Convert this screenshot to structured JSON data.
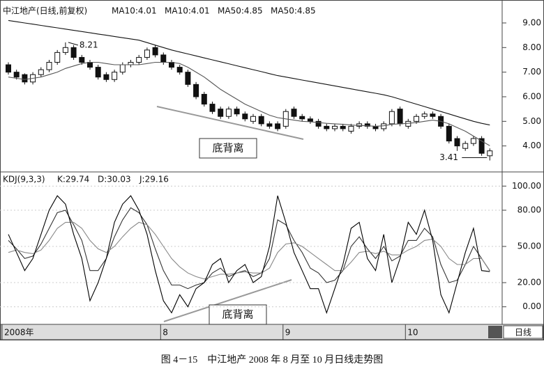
{
  "chart_data": [
    {
      "type": "candlestick",
      "title": "中江地产(日线,前复权)",
      "header_items": [
        "MA10:4.01",
        "MA50:4.85"
      ],
      "open": [
        7.3,
        7.0,
        6.9,
        6.6,
        6.9,
        7.1,
        7.4,
        7.8,
        8.0,
        7.6,
        7.4,
        7.2,
        6.9,
        6.7,
        7.0,
        7.3,
        7.4,
        7.6,
        8.0,
        7.7,
        7.4,
        7.2,
        7.0,
        6.5,
        6.1,
        5.7,
        5.5,
        5.2,
        5.5,
        5.3,
        5.0,
        5.2,
        4.9,
        4.9,
        4.8,
        5.5,
        5.2,
        5.1,
        5.0,
        4.8,
        4.7,
        4.8,
        4.6,
        4.8,
        4.9,
        4.8,
        4.7,
        4.9,
        5.5,
        4.8,
        5.0,
        5.2,
        5.3,
        5.2,
        4.8,
        4.3,
        3.9,
        4.1,
        4.3,
        3.6
      ],
      "high": [
        7.4,
        7.1,
        6.95,
        7.0,
        7.2,
        7.5,
        7.9,
        8.21,
        8.1,
        7.7,
        7.5,
        7.3,
        7.0,
        7.1,
        7.4,
        7.5,
        7.7,
        8.0,
        8.1,
        7.8,
        7.5,
        7.3,
        7.1,
        6.6,
        6.2,
        5.8,
        5.6,
        5.6,
        5.6,
        5.4,
        5.3,
        5.3,
        5.0,
        5.0,
        5.5,
        5.6,
        5.3,
        5.2,
        5.1,
        4.9,
        4.9,
        4.9,
        4.9,
        5.0,
        5.0,
        4.9,
        5.0,
        5.5,
        5.6,
        5.1,
        5.3,
        5.4,
        5.4,
        5.3,
        4.9,
        4.4,
        4.2,
        4.4,
        4.4,
        3.9
      ],
      "low": [
        6.9,
        6.7,
        6.5,
        6.5,
        6.8,
        7.0,
        7.3,
        7.7,
        7.5,
        7.3,
        7.1,
        6.7,
        6.6,
        6.6,
        6.9,
        7.2,
        7.3,
        7.5,
        7.6,
        7.3,
        7.1,
        6.9,
        6.4,
        5.9,
        5.6,
        5.3,
        5.1,
        5.1,
        5.2,
        5.0,
        4.9,
        4.8,
        4.7,
        4.6,
        4.7,
        5.1,
        5.0,
        4.9,
        4.7,
        4.6,
        4.6,
        4.6,
        4.5,
        4.7,
        4.7,
        4.6,
        4.6,
        4.8,
        4.8,
        4.7,
        4.9,
        5.1,
        5.1,
        4.7,
        4.1,
        3.8,
        3.8,
        4.0,
        3.6,
        3.41
      ],
      "close": [
        7.0,
        6.8,
        6.6,
        6.9,
        7.1,
        7.4,
        7.8,
        8.0,
        7.6,
        7.4,
        7.2,
        6.8,
        6.7,
        7.0,
        7.3,
        7.4,
        7.6,
        7.9,
        7.7,
        7.4,
        7.2,
        7.0,
        6.5,
        6.0,
        5.7,
        5.4,
        5.2,
        5.5,
        5.3,
        5.1,
        5.2,
        4.9,
        4.8,
        4.7,
        5.4,
        5.2,
        5.1,
        5.0,
        4.8,
        4.7,
        4.8,
        4.7,
        4.8,
        4.9,
        4.8,
        4.7,
        4.9,
        5.4,
        4.9,
        5.0,
        5.2,
        5.3,
        5.2,
        4.8,
        4.2,
        4.0,
        4.1,
        4.3,
        3.7,
        3.8
      ],
      "series": [
        {
          "name": "MA10:4.01",
          "color": "#555555",
          "values": [
            6.8,
            6.75,
            6.7,
            6.75,
            6.8,
            6.9,
            7.0,
            7.15,
            7.25,
            7.35,
            7.4,
            7.4,
            7.35,
            7.3,
            7.3,
            7.3,
            7.3,
            7.35,
            7.4,
            7.4,
            7.4,
            7.35,
            7.2,
            7.0,
            6.8,
            6.55,
            6.3,
            6.1,
            5.9,
            5.7,
            5.55,
            5.4,
            5.25,
            5.15,
            5.1,
            5.05,
            5.0,
            4.98,
            4.95,
            4.92,
            4.9,
            4.88,
            4.85,
            4.83,
            4.82,
            4.8,
            4.82,
            4.88,
            4.9,
            4.92,
            4.95,
            5.0,
            5.05,
            5.0,
            4.9,
            4.75,
            4.6,
            4.4,
            4.2,
            4.01
          ]
        },
        {
          "name": "MA50:4.85",
          "color": "#111111",
          "values": [
            9.1,
            9.05,
            9.0,
            8.95,
            8.9,
            8.85,
            8.8,
            8.75,
            8.7,
            8.65,
            8.6,
            8.55,
            8.5,
            8.45,
            8.4,
            8.35,
            8.3,
            8.2,
            8.1,
            8.0,
            7.9,
            7.82,
            7.74,
            7.66,
            7.58,
            7.5,
            7.42,
            7.34,
            7.26,
            7.18,
            7.1,
            7.02,
            6.94,
            6.86,
            6.8,
            6.74,
            6.68,
            6.62,
            6.56,
            6.5,
            6.44,
            6.38,
            6.32,
            6.26,
            6.2,
            6.14,
            6.08,
            6.0,
            5.9,
            5.8,
            5.7,
            5.6,
            5.5,
            5.4,
            5.3,
            5.2,
            5.1,
            5.0,
            4.92,
            4.85
          ]
        }
      ],
      "ylim": [
        3.0,
        9.65
      ],
      "yticks": [
        {
          "value": 4,
          "label": "4.00"
        },
        {
          "value": 5,
          "label": "5.00"
        },
        {
          "value": 6,
          "label": "6.00"
        },
        {
          "value": 7,
          "label": "7.00"
        },
        {
          "value": 8,
          "label": "8.00"
        },
        {
          "value": 9,
          "label": "9.00"
        }
      ],
      "annotations": {
        "high": "8.21",
        "low": "3.41",
        "divergence": "底背离"
      }
    },
    {
      "type": "line",
      "title": "KDJ(9,3,3)",
      "series": [
        {
          "name": "K:29.74",
          "color": "#333333",
          "values": [
            55,
            48,
            40,
            42,
            52,
            65,
            78,
            80,
            68,
            55,
            30,
            30,
            40,
            58,
            72,
            82,
            78,
            68,
            48,
            30,
            18,
            18,
            15,
            18,
            20,
            28,
            32,
            25,
            28,
            30,
            25,
            28,
            40,
            72,
            68,
            55,
            45,
            32,
            28,
            20,
            22,
            30,
            50,
            58,
            48,
            40,
            50,
            38,
            42,
            55,
            55,
            65,
            58,
            35,
            20,
            22,
            35,
            50,
            40,
            29.74
          ]
        },
        {
          "name": "D:30.03",
          "color": "#888888",
          "values": [
            45,
            47,
            45,
            44,
            47,
            55,
            65,
            70,
            70,
            65,
            55,
            48,
            45,
            50,
            58,
            65,
            70,
            68,
            60,
            50,
            40,
            33,
            28,
            25,
            23,
            25,
            27,
            27,
            28,
            29,
            28,
            28,
            32,
            45,
            52,
            53,
            50,
            45,
            40,
            35,
            30,
            30,
            37,
            45,
            46,
            44,
            46,
            43,
            43,
            47,
            50,
            55,
            56,
            50,
            40,
            35,
            35,
            40,
            40,
            30.03
          ]
        },
        {
          "name": "J:29.16",
          "color": "#000000",
          "values": [
            60,
            45,
            30,
            40,
            60,
            80,
            92,
            85,
            60,
            40,
            5,
            20,
            40,
            70,
            85,
            92,
            80,
            60,
            30,
            5,
            -5,
            10,
            0,
            15,
            20,
            35,
            40,
            20,
            30,
            35,
            20,
            25,
            50,
            92,
            70,
            45,
            30,
            15,
            15,
            -5,
            15,
            35,
            65,
            70,
            40,
            30,
            60,
            20,
            40,
            70,
            60,
            80,
            55,
            10,
            -5,
            20,
            45,
            65,
            30,
            29.16
          ]
        }
      ],
      "ylim": [
        -14,
        110
      ],
      "yticks": [
        {
          "value": 0,
          "label": "0.00"
        },
        {
          "value": 20,
          "label": "20.00"
        },
        {
          "value": 50,
          "label": "50.00"
        },
        {
          "value": 80,
          "label": "80.00"
        },
        {
          "value": 100,
          "label": "100.00"
        }
      ],
      "annotations": {
        "divergence": "底背离"
      }
    }
  ],
  "x_axis": {
    "categories": [
      "2008年",
      null,
      null,
      null,
      null,
      null,
      null,
      null,
      null,
      null,
      null,
      null,
      null,
      null,
      null,
      null,
      null,
      null,
      null,
      "8",
      null,
      null,
      null,
      null,
      null,
      null,
      null,
      null,
      null,
      null,
      null,
      null,
      null,
      null,
      "9",
      null,
      null,
      null,
      null,
      null,
      null,
      null,
      null,
      null,
      null,
      null,
      null,
      null,
      null,
      "10",
      null,
      null,
      null,
      null,
      null,
      null,
      null,
      null,
      null,
      null
    ],
    "period_button": "日线"
  },
  "caption": "图 4－15　中江地产 2008 年 8 月至 10 月日线走势图"
}
